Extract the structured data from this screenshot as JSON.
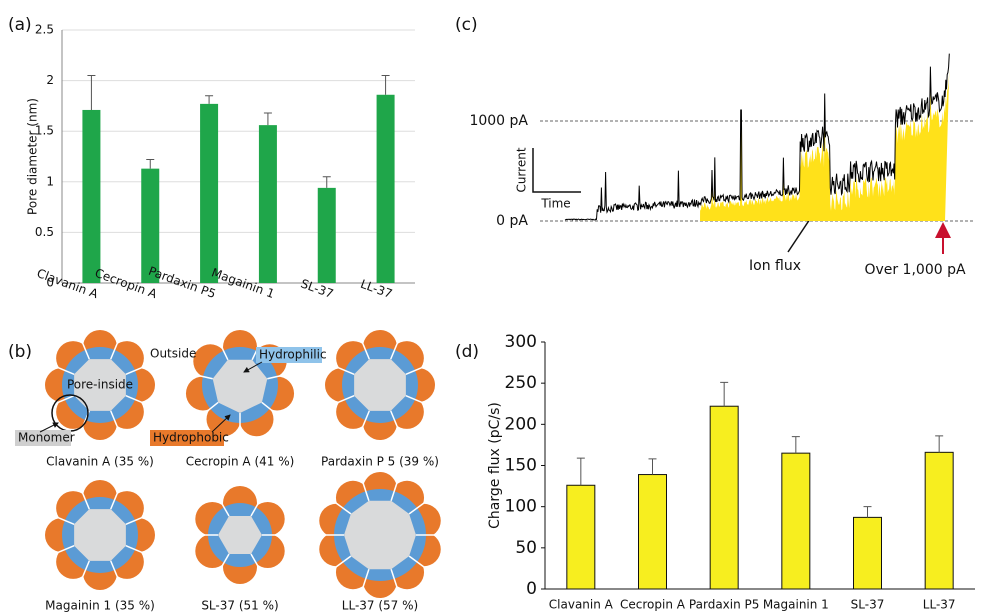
{
  "chart_data": [
    {
      "type": "bar",
      "label": "(a)",
      "ylabel": "Pore diameter (nm)",
      "categories": [
        "Clavanin A",
        "Cecropin A",
        "Pardaxin P5",
        "Magainin 1",
        "SL-37",
        "LL-37"
      ],
      "values": [
        1.71,
        1.13,
        1.77,
        1.56,
        0.94,
        1.86
      ],
      "errors": [
        0.34,
        0.09,
        0.08,
        0.12,
        0.11,
        0.19
      ],
      "color": "#1fa64a",
      "ylim": [
        0,
        2.5
      ],
      "yticks": [
        0,
        0.5,
        1,
        1.5,
        2,
        2.5
      ],
      "grid": true
    },
    {
      "type": "bar",
      "label": "(d)",
      "ylabel": "Charge flux (pC/s)",
      "categories": [
        "Clavanin A",
        "Cecropin A",
        "Pardaxin P5",
        "Magainin 1",
        "SL-37",
        "LL-37"
      ],
      "values": [
        126,
        139,
        222,
        165,
        87,
        166
      ],
      "errors": [
        33,
        19,
        29,
        20,
        13,
        20
      ],
      "color": "#f7ee1f",
      "ylim": [
        0,
        300
      ],
      "yticks": [
        0,
        50,
        100,
        150,
        200,
        250,
        300
      ],
      "grid": false
    }
  ],
  "panel_b": {
    "label": "(b)",
    "outside": "Outside",
    "pore_inside": "Pore-inside",
    "hydrophilic": "Hydrophilic",
    "hydrophobic": "Hydrophobic",
    "monomer": "Monomer",
    "captions": [
      "Clavanin A (35 %)",
      "Cecropin A (41 %)",
      "Pardaxin P 5 (39 %)",
      "Magainin 1 (35 %)",
      "SL-37 (51 %)",
      "LL-37 (57 %)"
    ]
  },
  "panel_c": {
    "label": "(c)",
    "high_level": "1000 pA",
    "zero_level": "0 pA",
    "current": "Current",
    "time": "Time",
    "ion_flux": "Ion flux",
    "over": "Over 1,000 pA"
  }
}
